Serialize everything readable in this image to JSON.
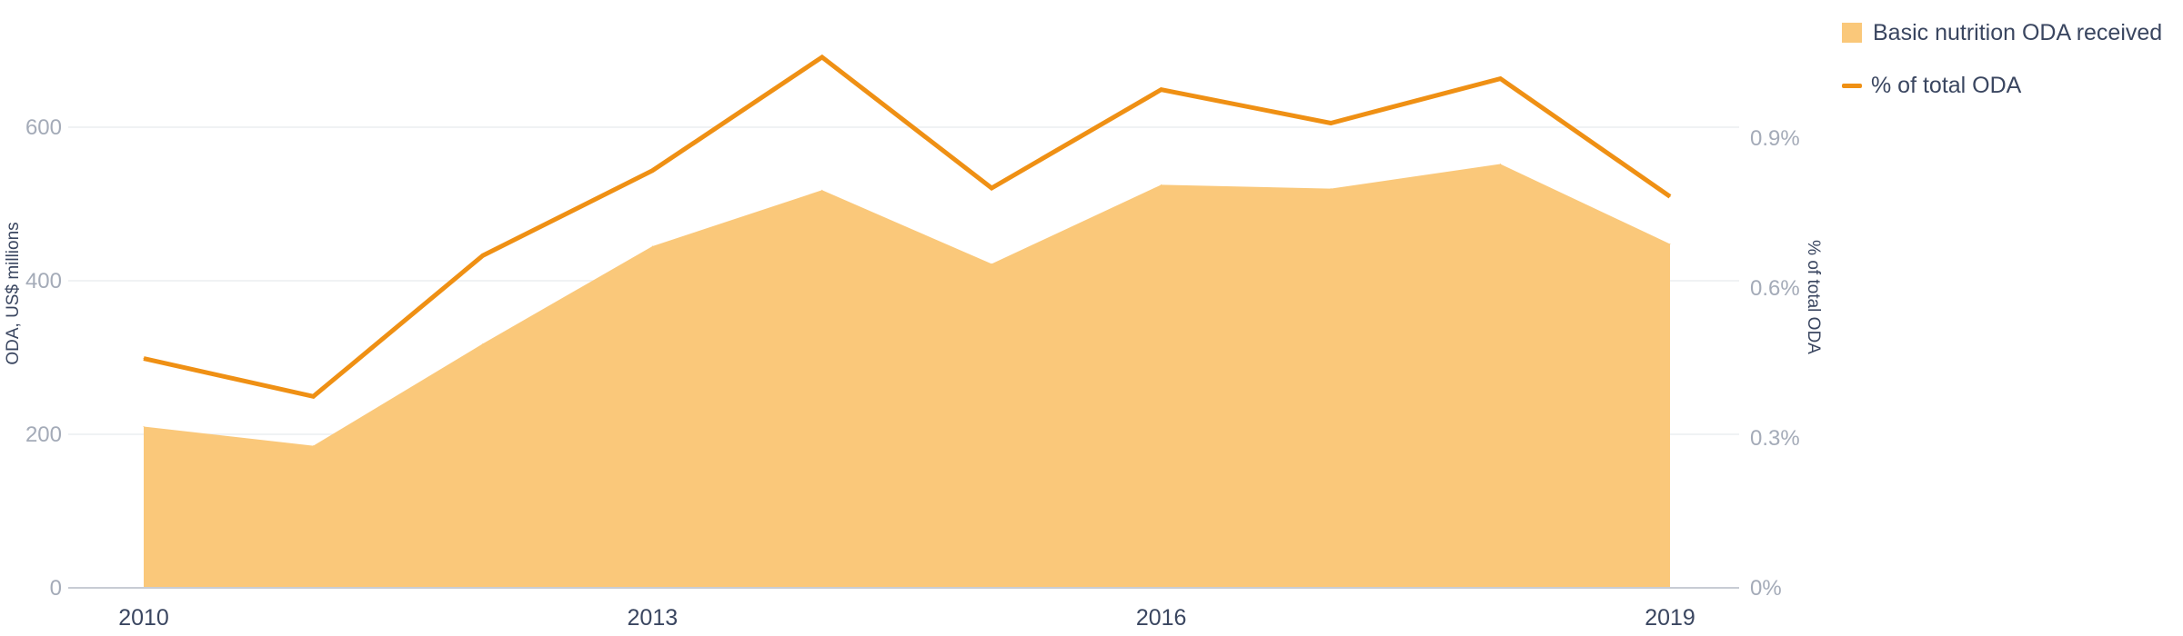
{
  "chart_data": {
    "type": "area",
    "x": [
      2010,
      2011,
      2012,
      2013,
      2014,
      2015,
      2016,
      2017,
      2018,
      2019
    ],
    "x_ticks": [
      "2010",
      "2013",
      "2016",
      "2019"
    ],
    "series": [
      {
        "name": "Basic nutrition ODA received",
        "type": "area",
        "axis": "left",
        "color": "#fac87a",
        "values": [
          210,
          185,
          318,
          445,
          518,
          422,
          525,
          520,
          552,
          448
        ]
      },
      {
        "name": "% of total ODA",
        "type": "line",
        "axis": "right",
        "color": "#ef9014",
        "values": [
          0.459,
          0.383,
          0.665,
          0.835,
          1.062,
          0.8,
          0.997,
          0.93,
          1.019,
          0.783
        ]
      }
    ],
    "ylabel": "ODA, US$ millions",
    "ylim": [
      0,
      600
    ],
    "y_ticks": [
      "0",
      "200",
      "400",
      "600"
    ],
    "y2label": "% of total ODA",
    "y2lim": [
      0,
      0.9
    ],
    "y2_ticks": [
      "0%",
      "0.3%",
      "0.6%",
      "0.9%"
    ],
    "grid": true,
    "legend_position": "top-right"
  }
}
